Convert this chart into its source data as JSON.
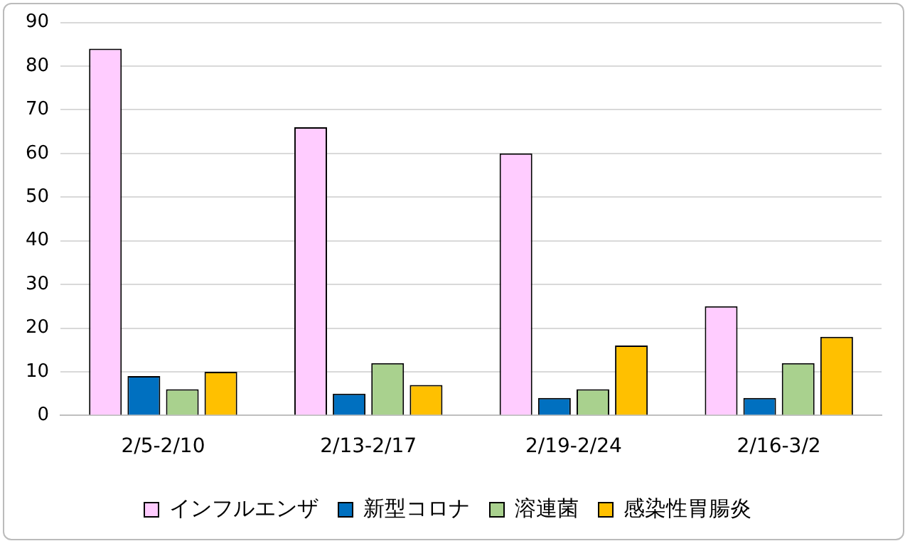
{
  "chart_data": {
    "type": "bar",
    "categories": [
      "2/5-2/10",
      "2/13-2/17",
      "2/19-2/24",
      "2/16-3/2"
    ],
    "series": [
      {
        "name": "インフルエンザ",
        "color": "#ffccff",
        "values": [
          84,
          66,
          60,
          25
        ]
      },
      {
        "name": "新型コロナ",
        "color": "#0070c0",
        "values": [
          9,
          5,
          4,
          4
        ]
      },
      {
        "name": "溶連菌",
        "color": "#a9d18e",
        "values": [
          6,
          12,
          6,
          12
        ]
      },
      {
        "name": "感染性胃腸炎",
        "color": "#ffc000",
        "values": [
          10,
          7,
          16,
          18
        ]
      }
    ],
    "ylim": [
      0,
      90
    ],
    "yticks": [
      0,
      10,
      20,
      30,
      40,
      50,
      60,
      70,
      80,
      90
    ],
    "grid": "y",
    "legend": "bottom"
  }
}
